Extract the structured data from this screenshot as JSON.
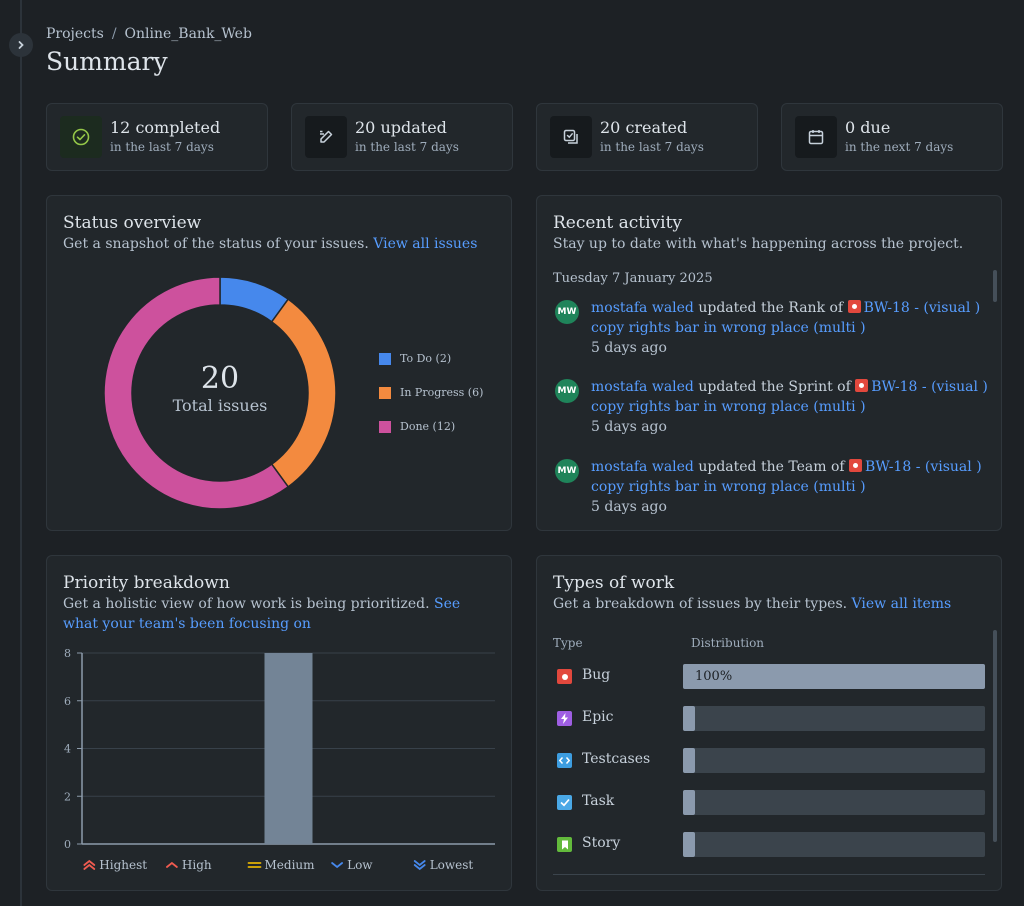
{
  "breadcrumb": {
    "projects": "Projects",
    "separator": "/",
    "project": "Online_Bank_Web"
  },
  "page_title": "Summary",
  "stats": [
    {
      "value": "12 completed",
      "sub": "in the last 7 days",
      "icon": "check-circle-icon"
    },
    {
      "value": "20 updated",
      "sub": "in the last 7 days",
      "icon": "pencil-icon"
    },
    {
      "value": "20 created",
      "sub": "in the last 7 days",
      "icon": "create-checklist-icon"
    },
    {
      "value": "0 due",
      "sub": "in the next 7 days",
      "icon": "calendar-icon"
    }
  ],
  "status_overview": {
    "title": "Status overview",
    "subtitle": "Get a snapshot of the status of your issues.",
    "link": "View all issues",
    "total_value": "20",
    "total_label": "Total issues",
    "legend": [
      {
        "label": "To Do (2)",
        "color": "#4688ec"
      },
      {
        "label": "In Progress (6)",
        "color": "#f38a3f"
      },
      {
        "label": "Done (12)",
        "color": "#cd519d"
      }
    ]
  },
  "recent_activity": {
    "title": "Recent activity",
    "subtitle": "Stay up to date with what's happening across the project.",
    "date": "Tuesday 7 January 2025",
    "items": [
      {
        "avatar": "MW",
        "user": "mostafa waled",
        "action": "updated the Rank of",
        "issue_key": "BW-18",
        "issue_title": " - (visual ) copy rights bar in wrong place (multi )",
        "time": "5 days ago"
      },
      {
        "avatar": "MW",
        "user": "mostafa waled",
        "action": "updated the Sprint of",
        "issue_key": "BW-18",
        "issue_title": " - (visual ) copy rights bar in wrong place (multi )",
        "time": "5 days ago"
      },
      {
        "avatar": "MW",
        "user": "mostafa waled",
        "action": "updated the Team of",
        "issue_key": "BW-18",
        "issue_title": " - (visual ) copy rights bar in wrong place (multi )",
        "time": "5 days ago"
      }
    ]
  },
  "priority": {
    "title": "Priority breakdown",
    "subtitle": "Get a holistic view of how work is being prioritized.",
    "link": "See what your team's been focusing on"
  },
  "types_of_work": {
    "title": "Types of work",
    "subtitle": "Get a breakdown of issues by their types.",
    "link": "View all items",
    "col_type": "Type",
    "col_distribution": "Distribution",
    "rows": [
      {
        "label": "Bug",
        "percent": 100,
        "percent_label": "100%",
        "color": "#e2483d",
        "icon": "bug-icon"
      },
      {
        "label": "Epic",
        "percent": 0,
        "percent_label": "",
        "color": "#9f5fe3",
        "icon": "epic-lightning-icon"
      },
      {
        "label": "Testcases",
        "percent": 0,
        "percent_label": "",
        "color": "#3d9de0",
        "icon": "testcase-code-icon"
      },
      {
        "label": "Task",
        "percent": 0,
        "percent_label": "",
        "color": "#4aa8e6",
        "icon": "task-check-icon"
      },
      {
        "label": "Story",
        "percent": 0,
        "percent_label": "",
        "color": "#63ba3c",
        "icon": "story-bookmark-icon"
      }
    ]
  },
  "chart_data": {
    "type": "bar",
    "categories": [
      "Highest",
      "High",
      "Medium",
      "Low",
      "Lowest"
    ],
    "values": [
      0,
      0,
      8,
      0,
      0
    ],
    "ylim": [
      0,
      8
    ],
    "yticks": [
      0,
      2,
      4,
      6,
      8
    ],
    "bar_color": "#738496",
    "grid": true,
    "category_colors": [
      "#f15b50",
      "#f15b50",
      "#e2b203",
      "#4688ec",
      "#4688ec"
    ],
    "category_icons": [
      "chevron-double-up-icon",
      "chevron-up-icon",
      "equals-icon",
      "chevron-down-icon",
      "chevron-double-down-icon"
    ]
  }
}
